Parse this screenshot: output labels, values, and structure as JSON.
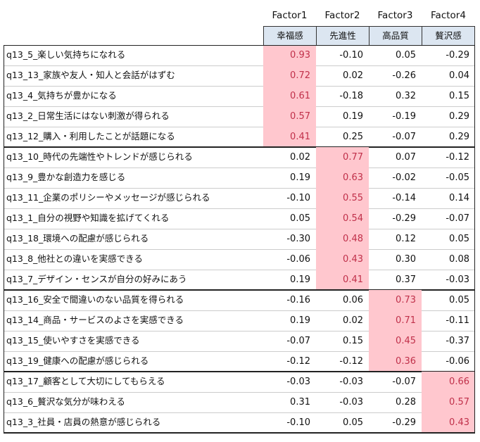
{
  "table": {
    "factors": [
      "Factor1",
      "Factor2",
      "Factor3",
      "Factor4"
    ],
    "labels": [
      "幸福感",
      "先進性",
      "高品質",
      "贅沢感"
    ],
    "groups": [
      {
        "factor": 0,
        "rows": [
          [
            "q13_5_楽しい気持ちになれる",
            "0.93",
            "-0.10",
            "0.05",
            "-0.29"
          ],
          [
            "q13_13_家族や友人・知人と会話がはずむ",
            "0.72",
            "0.02",
            "-0.26",
            "0.04"
          ],
          [
            "q13_4_気持ちが豊かになる",
            "0.61",
            "-0.18",
            "0.32",
            "0.15"
          ],
          [
            "q13_2_日常生活にはない刺激が得られる",
            "0.57",
            "0.19",
            "-0.19",
            "0.29"
          ],
          [
            "q13_12_購入・利用したことが話題になる",
            "0.41",
            "0.25",
            "-0.07",
            "0.29"
          ]
        ]
      },
      {
        "factor": 1,
        "rows": [
          [
            "q13_10_時代の先端性やトレンドが感じられる",
            "0.02",
            "0.77",
            "0.07",
            "-0.12"
          ],
          [
            "q13_9_豊かな創造力を感じる",
            "0.19",
            "0.63",
            "-0.02",
            "-0.05"
          ],
          [
            "q13_11_企業のポリシーやメッセージが感じられる",
            "-0.10",
            "0.55",
            "-0.14",
            "0.14"
          ],
          [
            "q13_1_自分の視野や知識を拡げてくれる",
            "0.05",
            "0.54",
            "-0.29",
            "-0.07"
          ],
          [
            "q13_18_環境への配慮が感じられる",
            "-0.30",
            "0.48",
            "0.12",
            "0.05"
          ],
          [
            "q13_8_他社との違いを実感できる",
            "-0.06",
            "0.43",
            "0.30",
            "0.08"
          ],
          [
            "q13_7_デザイン・センスが自分の好みにあう",
            "0.19",
            "0.41",
            "0.37",
            "-0.03"
          ]
        ]
      },
      {
        "factor": 2,
        "rows": [
          [
            "q13_16_安全で間違いのない品質を得られる",
            "-0.16",
            "0.06",
            "0.73",
            "0.05"
          ],
          [
            "q13_14_商品・サービスのよさを実感できる",
            "0.19",
            "0.02",
            "0.71",
            "-0.11"
          ],
          [
            "q13_15_使いやすさを実感できる",
            "-0.07",
            "0.15",
            "0.45",
            "-0.37"
          ],
          [
            "q13_19_健康への配慮が感じられる",
            "-0.12",
            "-0.12",
            "0.36",
            "-0.06"
          ]
        ]
      },
      {
        "factor": 3,
        "rows": [
          [
            "q13_17_顧客として大切にしてもらえる",
            "-0.03",
            "-0.03",
            "-0.07",
            "0.66"
          ],
          [
            "q13_6_贅沢な気分が味わえる",
            "0.31",
            "-0.03",
            "0.28",
            "0.57"
          ],
          [
            "q13_3_社員・店員の熱意が感じられる",
            "-0.10",
            "0.05",
            "-0.29",
            "0.43"
          ]
        ]
      }
    ]
  }
}
